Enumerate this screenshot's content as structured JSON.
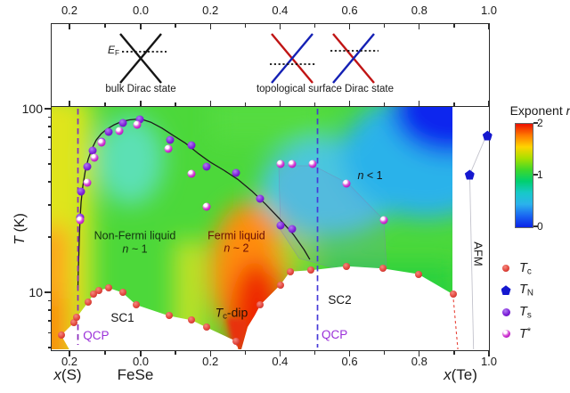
{
  "figure": {
    "dirac_panel": {
      "ef_segments": [
        {
          "t": "E",
          "i": true
        },
        {
          "t": "F",
          "sub": true
        }
      ],
      "bulk_label": "bulk Dirac state",
      "topo_label": "topological surface Dirac state",
      "cone_colors": {
        "bulk": "#151515",
        "topo_left_band": "#c01414",
        "topo_right_band": "#1420b4"
      }
    },
    "x_bottom_labels": {
      "s_segments": [
        {
          "t": "x",
          "i": true
        },
        {
          "t": "(S)"
        }
      ],
      "center": "FeSe",
      "te_segments": [
        {
          "t": "x",
          "i": true
        },
        {
          "t": "(Te)"
        }
      ]
    }
  },
  "chart_data": {
    "type": "heatmap+scatter phase diagram",
    "x_axis": {
      "range": [
        -0.245,
        1.0
      ],
      "major_ticks": [
        -0.2,
        0.0,
        0.2,
        0.4,
        0.6,
        0.8,
        1.0
      ],
      "major_tick_labels": [
        "0.2",
        "0.0",
        "0.2",
        "0.4",
        "0.6",
        "0.8",
        "1.0"
      ],
      "minor_ticks": [
        -0.1,
        0.1,
        0.3,
        0.5,
        0.7,
        0.9
      ],
      "negative_side_label": "x(S)",
      "origin_label": "FeSe",
      "positive_side_label": "x(Te)"
    },
    "y_axis": {
      "label_segments": [
        {
          "t": "T",
          "i": true
        },
        {
          "t": " (K)"
        }
      ],
      "scale": "log",
      "range": [
        4.7,
        105
      ],
      "major_ticks": [
        {
          "v": 10,
          "label": "10"
        },
        {
          "v": 100,
          "label": "100"
        }
      ],
      "minor_ticks": [
        5,
        6,
        7,
        8,
        9,
        20,
        30,
        40,
        50,
        60,
        70,
        80,
        90
      ]
    },
    "colorbar": {
      "title_segments": [
        {
          "t": "Exponent "
        },
        {
          "t": "n",
          "i": true
        }
      ],
      "ticks": [
        {
          "v": 2,
          "label": "2"
        },
        {
          "v": 1,
          "label": "1"
        },
        {
          "v": 0,
          "label": "0"
        }
      ],
      "scale_colors_top_to_bottom": [
        "#ed1000",
        "#ff7a00",
        "#ffd400",
        "#a8e000",
        "#3fd82a",
        "#00cf70",
        "#17c9c9",
        "#2bb2ec",
        "#1a66f2",
        "#0b24e8"
      ]
    },
    "series": [
      {
        "id": "tc",
        "marker": "circle",
        "size": 8,
        "color": "#e2463e",
        "label_segments": [
          {
            "t": "T",
            "i": true
          },
          {
            "t": "c",
            "sub": true
          }
        ],
        "points": [
          [
            -0.222,
            5.8
          ],
          [
            -0.186,
            6.8
          ],
          [
            -0.178,
            7.3
          ],
          [
            -0.146,
            8.8
          ],
          [
            -0.131,
            9.7
          ],
          [
            -0.116,
            10.2
          ],
          [
            -0.088,
            10.5
          ],
          [
            -0.05,
            9.9
          ],
          [
            -0.012,
            8.5
          ],
          [
            0.082,
            7.4
          ],
          [
            0.148,
            7.0
          ],
          [
            0.19,
            6.4
          ],
          [
            0.274,
            5.4
          ],
          [
            0.345,
            8.5
          ],
          [
            0.402,
            10.9
          ],
          [
            0.43,
            12.9
          ],
          [
            0.49,
            13.1
          ],
          [
            0.593,
            13.8
          ],
          [
            0.696,
            13.4
          ],
          [
            0.798,
            12.5
          ],
          [
            0.898,
            9.7
          ]
        ]
      },
      {
        "id": "tn",
        "marker": "pentagon",
        "size": 11,
        "color": "#1518cf",
        "label_segments": [
          {
            "t": "T",
            "i": true
          },
          {
            "t": "N",
            "sub": true
          }
        ],
        "points": [
          [
            0.946,
            43.5
          ],
          [
            0.997,
            71
          ]
        ]
      },
      {
        "id": "ts",
        "marker": "circle",
        "size": 9,
        "color": "#7d1fd8",
        "label_segments": [
          {
            "t": "T",
            "i": true
          },
          {
            "t": "s",
            "sub": true
          }
        ],
        "points": [
          [
            -0.17,
            25.5
          ],
          [
            -0.166,
            35
          ],
          [
            -0.148,
            48
          ],
          [
            -0.133,
            59
          ],
          [
            -0.11,
            66
          ],
          [
            -0.088,
            74
          ],
          [
            -0.05,
            83
          ],
          [
            -0.002,
            87
          ],
          [
            0.085,
            67
          ],
          [
            0.146,
            63
          ],
          [
            0.19,
            48
          ],
          [
            0.275,
            44.5
          ],
          [
            0.345,
            32
          ],
          [
            0.402,
            23
          ],
          [
            0.437,
            22
          ]
        ]
      },
      {
        "id": "tstar",
        "marker": "sphere",
        "size": 9,
        "color": "#c322c9",
        "label_segments": [
          {
            "t": "T",
            "i": true
          },
          {
            "t": "*",
            "sup": true
          }
        ],
        "points": [
          [
            -0.168,
            24.5
          ],
          [
            -0.148,
            39.5
          ],
          [
            -0.13,
            54
          ],
          [
            -0.108,
            65
          ],
          [
            -0.058,
            75
          ],
          [
            -0.01,
            81
          ],
          [
            0.08,
            60
          ],
          [
            0.146,
            44
          ],
          [
            0.19,
            29
          ],
          [
            0.402,
            49.5
          ],
          [
            0.437,
            49.5
          ],
          [
            0.496,
            50
          ],
          [
            0.593,
            39
          ],
          [
            0.7,
            24.7
          ]
        ]
      }
    ],
    "structural_line": [
      [
        -0.175,
        10.5
      ],
      [
        -0.174,
        13
      ],
      [
        -0.1725,
        16
      ],
      [
        -0.171,
        20
      ],
      [
        -0.169,
        25
      ],
      [
        -0.166,
        31
      ],
      [
        -0.161,
        38
      ],
      [
        -0.154,
        46
      ],
      [
        -0.146,
        53
      ],
      [
        -0.136,
        60
      ],
      [
        -0.124,
        67
      ],
      [
        -0.11,
        72.5
      ],
      [
        -0.094,
        77
      ],
      [
        -0.075,
        81
      ],
      [
        -0.054,
        84.5
      ],
      [
        -0.03,
        86.5
      ],
      [
        0.0,
        87.5
      ],
      [
        0.03,
        84
      ],
      [
        0.062,
        78
      ],
      [
        0.095,
        71
      ],
      [
        0.13,
        64.5
      ],
      [
        0.165,
        57
      ],
      [
        0.2,
        51
      ],
      [
        0.24,
        46
      ],
      [
        0.28,
        41
      ],
      [
        0.32,
        35.5
      ],
      [
        0.36,
        30
      ],
      [
        0.4,
        25
      ],
      [
        0.44,
        20.5
      ],
      [
        0.47,
        17
      ],
      [
        0.487,
        15
      ]
    ],
    "qcp_lines": [
      {
        "x": -0.175,
        "color": "#8a2bbd",
        "label": "QCP"
      },
      {
        "x": 0.509,
        "color": "#4538d8",
        "label": "QCP"
      }
    ],
    "afm_boundary": [
      [
        0.999,
        75
      ],
      [
        0.946,
        43.5
      ],
      [
        0.957,
        4.85
      ]
    ],
    "sc2_right_dashed_edge": [
      [
        0.898,
        9.7
      ],
      [
        0.912,
        4.85
      ]
    ],
    "regions": [
      {
        "id": "non-fermi-liquid",
        "x": -0.015,
        "T": 18.5,
        "color": "#12330f",
        "fs": 12.5,
        "lines": [
          [
            {
              "t": "Non-Fermi liquid"
            }
          ],
          [
            {
              "t": "n",
              "i": true
            },
            {
              "t": " ~ 1"
            }
          ]
        ]
      },
      {
        "id": "fermi-liquid",
        "x": 0.276,
        "T": 18.6,
        "color": "#6b0d05",
        "fs": 12.5,
        "lines": [
          [
            {
              "t": "Fermi liquid"
            }
          ],
          [
            {
              "t": "n",
              "i": true
            },
            {
              "t": " ~ 2"
            }
          ]
        ]
      },
      {
        "id": "n-less-than-1",
        "x": 0.66,
        "T": 43,
        "color": "#141414",
        "fs": 12.5,
        "lines": [
          [
            {
              "t": "n",
              "i": true
            },
            {
              "t": " < 1"
            }
          ]
        ]
      },
      {
        "id": "sc1",
        "x": -0.05,
        "T": 7.2,
        "color": "#141414",
        "fs": 13.5,
        "lines": [
          [
            {
              "t": "SC1"
            }
          ]
        ]
      },
      {
        "id": "sc2",
        "x": 0.573,
        "T": 9.0,
        "color": "#141414",
        "fs": 13.5,
        "lines": [
          [
            {
              "t": "SC2"
            }
          ]
        ]
      },
      {
        "id": "tc-dip",
        "x": 0.262,
        "T": 7.6,
        "color": "#241104",
        "fs": 14,
        "lines": [
          [
            {
              "t": "T",
              "i": true
            },
            {
              "t": "c",
              "sub": true
            },
            {
              "t": "-dip"
            }
          ]
        ]
      },
      {
        "id": "qcp-left-label",
        "x": -0.124,
        "T": 5.75,
        "color": "#9b30d9",
        "fs": 13.5,
        "lines": [
          [
            {
              "t": "QCP"
            }
          ]
        ]
      },
      {
        "id": "qcp-right-label",
        "x": 0.558,
        "T": 5.8,
        "color": "#9b30d9",
        "fs": 13.5,
        "lines": [
          [
            {
              "t": "QCP"
            }
          ]
        ]
      },
      {
        "id": "afm",
        "x": 0.968,
        "T": 16,
        "color": "#141414",
        "fs": 13,
        "rotate": 90,
        "lines": [
          [
            {
              "t": "AFM"
            }
          ]
        ]
      }
    ]
  }
}
